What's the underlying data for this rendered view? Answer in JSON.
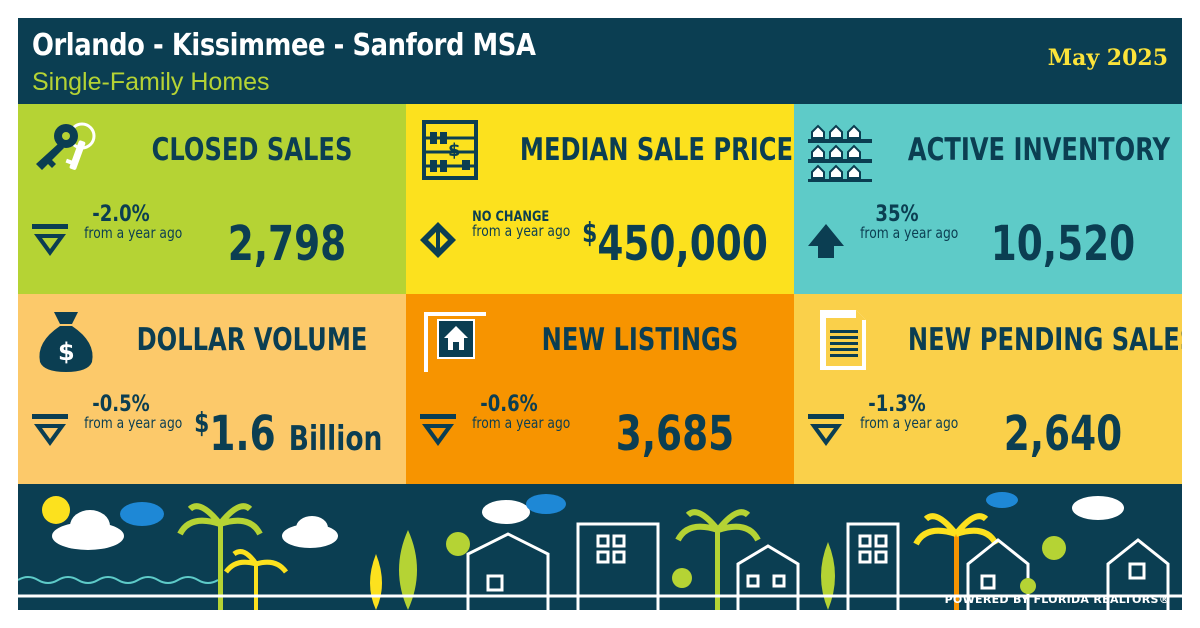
{
  "header": {
    "title": "Orlando - Kissimmee - Sanford MSA",
    "subtitle": "Single-Family Homes",
    "date": "May 2025"
  },
  "colors": {
    "navy": "#0b3e52",
    "lime": "#b5d334",
    "yellow": "#fce11e",
    "teal": "#5ecbc8",
    "peach": "#fcc96a",
    "orange": "#f79400",
    "gold": "#fad04a",
    "date_yellow": "#fce33a"
  },
  "tiles": [
    {
      "label": "CLOSED SALES",
      "icon": "keys-icon",
      "arrow": "down-arrow-icon",
      "change": "-2.0%",
      "change_sub": "from a year ago",
      "value": "2,798"
    },
    {
      "label": "MEDIAN SALE PRICE",
      "icon": "abacus-icon",
      "arrow": "left-right-arrow-icon",
      "change": "NO CHANGE",
      "change_sub": "from a year ago",
      "value_currency": "$",
      "value": "450,000"
    },
    {
      "label": "ACTIVE INVENTORY",
      "icon": "houses-grid-icon",
      "arrow": "up-arrow-icon",
      "change": "35%",
      "change_sub": "from a year ago",
      "value": "10,520"
    },
    {
      "label": "DOLLAR VOLUME",
      "icon": "money-bag-icon",
      "arrow": "down-arrow-icon",
      "change": "-0.5%",
      "change_sub": "from a year ago",
      "value_currency": "$",
      "value": "1.6",
      "value_unit": "Billion"
    },
    {
      "label": "NEW LISTINGS",
      "icon": "for-sale-sign-icon",
      "arrow": "down-arrow-icon",
      "change": "-0.6%",
      "change_sub": "from a year ago",
      "value": "3,685"
    },
    {
      "label": "NEW PENDING SALES",
      "icon": "document-icon",
      "arrow": "down-arrow-icon",
      "change": "-1.3%",
      "change_sub": "from a year ago",
      "value": "2,640"
    }
  ],
  "footer": {
    "powered_by": "POWERED BY FLORIDA REALTORS®"
  }
}
